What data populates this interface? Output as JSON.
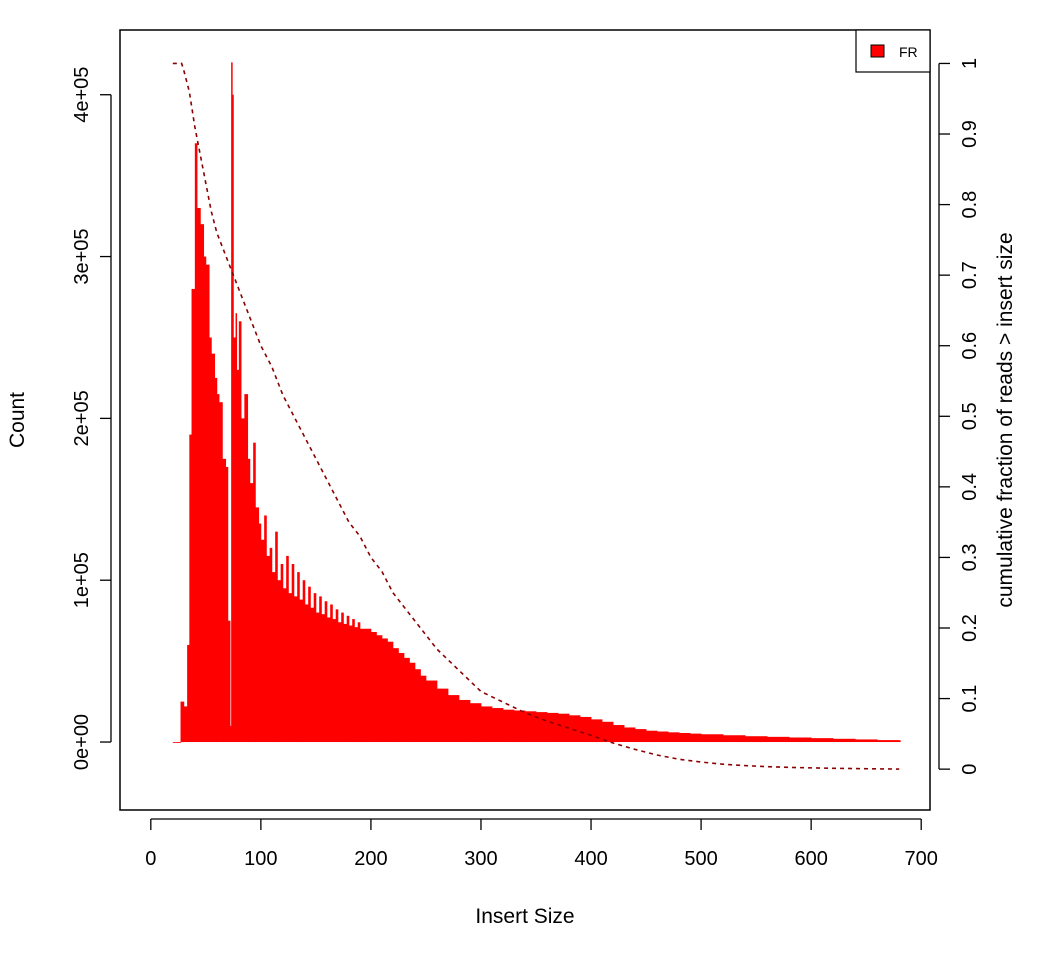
{
  "chart_data": {
    "type": "bar",
    "xlabel": "Insert Size",
    "ylabel": "Count",
    "ylabel_right": "cumulative fraction of reads > insert size",
    "xlim": [
      -28,
      708
    ],
    "ylim": [
      -42000,
      440000
    ],
    "ylim_right": [
      -0.0579,
      1.0474
    ],
    "x_ticks": [
      0,
      100,
      200,
      300,
      400,
      500,
      600,
      700
    ],
    "x_tick_labels": [
      "0",
      "100",
      "200",
      "300",
      "400",
      "500",
      "600",
      "700"
    ],
    "y_ticks": [
      0,
      100000,
      200000,
      300000,
      400000
    ],
    "y_tick_labels": [
      "0e+00",
      "1e+05",
      "2e+05",
      "3e+05",
      "4e+05"
    ],
    "y_right_ticks": [
      0,
      0.1,
      0.2,
      0.3,
      0.4,
      0.5,
      0.6,
      0.7,
      0.8,
      0.9,
      1
    ],
    "y_right_tick_labels": [
      "0",
      "0.1",
      "0.2",
      "0.3",
      "0.4",
      "0.5",
      "0.6",
      "0.7",
      "0.8",
      "0.9",
      "1"
    ],
    "legend": {
      "position": "top-right",
      "label": "FR",
      "color": "#ff0000"
    },
    "bar_color": "#ff0000",
    "cumulative_color": "#8b0000",
    "series": [
      {
        "name": "FR",
        "x": [
          20,
          25,
          27,
          30,
          33,
          35,
          37,
          40,
          42,
          45,
          48,
          50,
          53,
          55,
          58,
          60,
          62,
          65,
          68,
          70,
          72,
          73,
          74,
          75,
          77,
          78,
          80,
          82,
          85,
          88,
          90,
          93,
          95,
          98,
          100,
          103,
          105,
          108,
          110,
          113,
          115,
          118,
          120,
          123,
          125,
          128,
          130,
          133,
          135,
          138,
          140,
          143,
          145,
          148,
          150,
          153,
          155,
          158,
          160,
          163,
          165,
          168,
          170,
          173,
          175,
          178,
          180,
          183,
          185,
          188,
          190,
          195,
          200,
          205,
          210,
          215,
          220,
          225,
          230,
          235,
          240,
          245,
          250,
          260,
          270,
          280,
          290,
          300,
          310,
          320,
          330,
          340,
          350,
          360,
          370,
          380,
          390,
          400,
          410,
          420,
          430,
          440,
          450,
          460,
          470,
          480,
          490,
          500,
          520,
          540,
          560,
          580,
          600,
          620,
          640,
          660,
          680
        ],
        "values": [
          0,
          0,
          25000,
          22000,
          60000,
          190000,
          280000,
          370000,
          330000,
          320000,
          300000,
          295000,
          250000,
          240000,
          225000,
          215000,
          210000,
          175000,
          170000,
          75000,
          10000,
          420000,
          400000,
          250000,
          265000,
          230000,
          260000,
          200000,
          215000,
          175000,
          160000,
          185000,
          145000,
          135000,
          125000,
          140000,
          115000,
          120000,
          105000,
          130000,
          100000,
          110000,
          95000,
          115000,
          92000,
          110000,
          90000,
          105000,
          88000,
          100000,
          85000,
          96000,
          83000,
          92000,
          80000,
          90000,
          79000,
          87000,
          77000,
          85000,
          76000,
          82000,
          74000,
          80000,
          73000,
          78000,
          72000,
          76000,
          71000,
          74000,
          70000,
          70000,
          68000,
          66000,
          64000,
          62000,
          58000,
          55000,
          52000,
          49000,
          45000,
          41000,
          38000,
          33000,
          29000,
          26000,
          24000,
          22000,
          21000,
          20000,
          19500,
          19000,
          18500,
          18000,
          17500,
          16500,
          15500,
          14000,
          12500,
          10500,
          9000,
          8000,
          7000,
          6500,
          6000,
          5600,
          5200,
          4800,
          4200,
          3600,
          3200,
          2800,
          2400,
          2000,
          1600,
          1200,
          1000
        ]
      }
    ],
    "cumulative": {
      "name": "cumulative fraction of reads > insert size",
      "x": [
        20,
        25,
        28,
        30,
        35,
        40,
        45,
        50,
        55,
        60,
        65,
        70,
        75,
        80,
        90,
        100,
        110,
        120,
        130,
        140,
        150,
        160,
        170,
        180,
        190,
        200,
        210,
        220,
        230,
        240,
        250,
        260,
        270,
        280,
        290,
        300,
        320,
        340,
        360,
        380,
        400,
        420,
        440,
        460,
        480,
        500,
        520,
        540,
        560,
        580,
        600,
        620,
        640,
        660,
        680
      ],
      "values": [
        1,
        1,
        1,
        0.99,
        0.96,
        0.91,
        0.87,
        0.83,
        0.79,
        0.76,
        0.74,
        0.72,
        0.7,
        0.68,
        0.64,
        0.6,
        0.57,
        0.53,
        0.5,
        0.47,
        0.44,
        0.41,
        0.38,
        0.35,
        0.33,
        0.3,
        0.28,
        0.25,
        0.23,
        0.21,
        0.19,
        0.17,
        0.155,
        0.14,
        0.125,
        0.11,
        0.095,
        0.08,
        0.068,
        0.058,
        0.048,
        0.037,
        0.028,
        0.02,
        0.014,
        0.01,
        0.007,
        0.005,
        0.0035,
        0.0025,
        0.0018,
        0.0012,
        0.0008,
        0.0004,
        0.0001
      ]
    }
  }
}
